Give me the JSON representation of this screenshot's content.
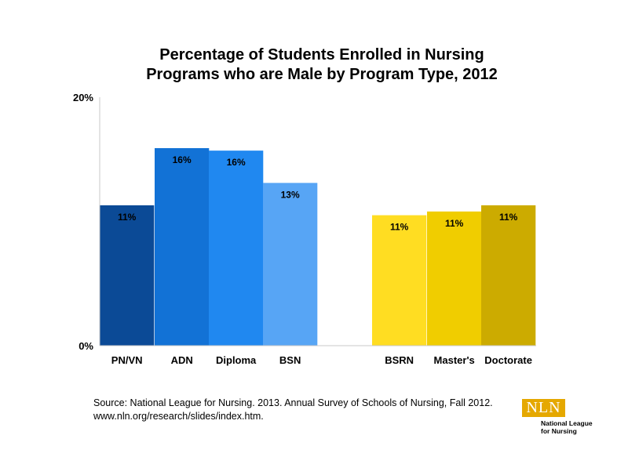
{
  "chart_data": {
    "type": "bar",
    "title_lines": [
      "Percentage of Students Enrolled in Nursing",
      "Programs who are Male by Program Type, 2012"
    ],
    "categories": [
      "PN/VN",
      "ADN",
      "Diploma",
      "BSN",
      "BSRN",
      "Master's",
      "Doctorate"
    ],
    "values": [
      11.3,
      15.9,
      15.7,
      13.1,
      10.5,
      10.8,
      11.3
    ],
    "data_labels": [
      "11%",
      "16%",
      "16%",
      "13%",
      "11%",
      "11%",
      "11%"
    ],
    "colors": [
      "#0b4a96",
      "#1272d6",
      "#2088f0",
      "#57a5f5",
      "#ffdd22",
      "#f0cd00",
      "#ccab00"
    ],
    "ylim": [
      0,
      20
    ],
    "y_ticks": [
      {
        "value": 0,
        "label": "0%"
      },
      {
        "value": 20,
        "label": "20%"
      }
    ],
    "xlabel": "",
    "ylabel": "",
    "grid": false,
    "legend": "none"
  },
  "source": {
    "line1": "Source: National League for Nursing. 2013. Annual Survey of Schools of Nursing, Fall 2012.",
    "line2": "www.nln.org/research/slides/index.htm."
  },
  "logo": {
    "mark": "NLN",
    "line1": "National League",
    "line2": "for Nursing",
    "color": "#e5a800"
  }
}
